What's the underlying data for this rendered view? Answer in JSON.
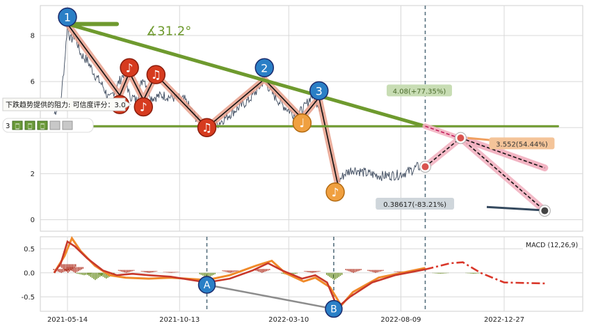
{
  "chart_data": [
    {
      "type": "line",
      "panel": "price",
      "yticks": [
        0,
        2,
        4,
        6,
        8
      ],
      "ylim": [
        -0.5,
        9.3
      ],
      "x_dates": [
        "2021-05-14",
        "2021-10-13",
        "2022-03-10",
        "2022-08-09",
        "2022-12-27"
      ],
      "price_series": [
        [
          "2021-04-26",
          4.6
        ],
        [
          "2021-05-05",
          5.2
        ],
        [
          "2021-05-10",
          6.8
        ],
        [
          "2021-05-14",
          8.5
        ],
        [
          "2021-05-18",
          7.8
        ],
        [
          "2021-05-24",
          8.0
        ],
        [
          "2021-06-01",
          7.2
        ],
        [
          "2021-06-10",
          6.9
        ],
        [
          "2021-06-20",
          6.3
        ],
        [
          "2021-07-01",
          5.8
        ],
        [
          "2021-07-10",
          5.2
        ],
        [
          "2021-07-20",
          5.8
        ],
        [
          "2021-07-30",
          6.4
        ],
        [
          "2021-08-06",
          5.4
        ],
        [
          "2021-08-15",
          5.2
        ],
        [
          "2021-08-25",
          6.2
        ],
        [
          "2021-09-05",
          5.3
        ],
        [
          "2021-09-20",
          5.4
        ],
        [
          "2021-10-05",
          5.3
        ],
        [
          "2021-10-20",
          5.2
        ],
        [
          "2021-11-05",
          4.4
        ],
        [
          "2021-11-19",
          3.9
        ],
        [
          "2021-12-05",
          4.2
        ],
        [
          "2021-12-25",
          4.7
        ],
        [
          "2022-01-15",
          5.2
        ],
        [
          "2022-01-28",
          5.7
        ],
        [
          "2022-02-05",
          6.1
        ],
        [
          "2022-02-15",
          5.5
        ],
        [
          "2022-03-01",
          5.0
        ],
        [
          "2022-03-20",
          4.5
        ],
        [
          "2022-04-01",
          4.9
        ],
        [
          "2022-04-10",
          5.4
        ],
        [
          "2022-04-20",
          5.0
        ],
        [
          "2022-04-28",
          4.3
        ],
        [
          "2022-05-08",
          2.7
        ],
        [
          "2022-05-15",
          1.6
        ],
        [
          "2022-05-25",
          2.0
        ],
        [
          "2022-06-05",
          2.2
        ],
        [
          "2022-06-25",
          2.0
        ],
        [
          "2022-07-15",
          1.9
        ],
        [
          "2022-08-05",
          1.95
        ],
        [
          "2022-08-20",
          2.1
        ],
        [
          "2022-09-01",
          2.3
        ],
        [
          "2022-09-11",
          2.3
        ]
      ],
      "trendlines": [
        {
          "style": "descending-resistance",
          "color": "#6e9a2e",
          "points": [
            [
              "2021-05-14",
              8.5
            ],
            [
              "2022-09-11",
              4.06
            ]
          ]
        },
        {
          "style": "horizontal-level",
          "color": "#6e9a2e",
          "points": [
            [
              "2021-05-14",
              4.06
            ],
            [
              "2023-03-10",
              4.06
            ]
          ]
        },
        {
          "style": "angle-marker",
          "color": "#6e9a2e",
          "points": [
            [
              "2021-05-14",
              8.5
            ],
            [
              "2021-07-20",
              8.5
            ]
          ]
        }
      ],
      "wave_path": [
        [
          "2021-05-14",
          8.5
        ],
        [
          "2021-07-24",
          5.4
        ],
        [
          "2021-08-06",
          6.4
        ],
        [
          "2021-08-25",
          5.2
        ],
        [
          "2021-09-11",
          6.3
        ],
        [
          "2021-11-19",
          4.0
        ],
        [
          "2022-02-05",
          6.1
        ],
        [
          "2022-03-28",
          4.4
        ],
        [
          "2022-04-20",
          5.3
        ],
        [
          "2022-05-15",
          1.6
        ]
      ],
      "markers": [
        {
          "label": "1",
          "kind": "blue",
          "x": "2021-05-14",
          "y": 8.8
        },
        {
          "label": "2",
          "kind": "blue",
          "x": "2022-02-05",
          "y": 6.6
        },
        {
          "label": "3",
          "kind": "blue",
          "x": "2022-04-20",
          "y": 5.6
        },
        {
          "label": "♩",
          "kind": "red",
          "x": "2021-07-24",
          "y": 5.0
        },
        {
          "label": "♪",
          "kind": "red",
          "x": "2021-08-06",
          "y": 6.6
        },
        {
          "label": "♪",
          "kind": "red",
          "x": "2021-08-25",
          "y": 4.9
        },
        {
          "label": "♫",
          "kind": "red",
          "x": "2021-09-11",
          "y": 6.3
        },
        {
          "label": "♫",
          "kind": "red",
          "x": "2021-11-19",
          "y": 4.0
        },
        {
          "label": "♩",
          "kind": "orange",
          "x": "2022-03-28",
          "y": 4.2
        },
        {
          "label": "♪",
          "kind": "orange",
          "x": "2022-05-12",
          "y": 1.2
        }
      ],
      "projections": [
        {
          "color": "#c2185b",
          "from": [
            "2022-09-11",
            2.3
          ],
          "to": [
            "2022-10-29",
            3.55
          ]
        },
        {
          "color": "#c2185b",
          "from": [
            "2022-10-29",
            3.55
          ],
          "to": [
            "2023-02-20",
            0.39
          ]
        },
        {
          "color": "#c2185b",
          "from": [
            "2022-09-11",
            4.06
          ],
          "to": [
            "2023-02-20",
            2.25
          ]
        },
        {
          "color": "#c2185b",
          "from": [
            "2022-10-29",
            3.55
          ],
          "to": [
            "2023-02-20",
            2.25
          ]
        }
      ],
      "callouts": [
        {
          "text": "4.08(+77.35%)",
          "x": "2022-09-03",
          "y": 5.6,
          "bg": "#c8ddb4",
          "fg": "#4a6a2a"
        },
        {
          "text": "3.552(54.44%)",
          "x": "2023-01-20",
          "y": 3.3,
          "bg": "#f4c499",
          "fg": "#333333"
        },
        {
          "text": "0.38617(-83.21%)",
          "x": "2022-08-28",
          "y": 0.68,
          "bg": "#cfd6db",
          "fg": "#222222"
        }
      ],
      "angle_label": "∡31.2°",
      "resistance_note": "下跌趋势提供的阻力: 可信度评分：3.0",
      "rating_value": "3",
      "rating_stars_filled": 3,
      "rating_stars_total": 5
    },
    {
      "type": "line",
      "panel": "macd",
      "legend": "MACD (12,26,9)",
      "yticks": [
        -0.5,
        0.0,
        0.5
      ],
      "ylim": [
        -0.8,
        0.75
      ],
      "macd_line": [
        [
          "2021-04-26",
          0.0
        ],
        [
          "2021-05-05",
          0.2
        ],
        [
          "2021-05-14",
          0.65
        ],
        [
          "2021-05-24",
          0.55
        ],
        [
          "2021-06-10",
          0.3
        ],
        [
          "2021-07-01",
          0.05
        ],
        [
          "2021-07-20",
          -0.05
        ],
        [
          "2021-08-10",
          -0.02
        ],
        [
          "2021-09-01",
          -0.05
        ],
        [
          "2021-10-01",
          -0.08
        ],
        [
          "2021-11-19",
          -0.2
        ],
        [
          "2021-12-20",
          -0.12
        ],
        [
          "2022-01-20",
          0.05
        ],
        [
          "2022-02-10",
          0.2
        ],
        [
          "2022-03-01",
          0.05
        ],
        [
          "2022-03-28",
          -0.12
        ],
        [
          "2022-04-15",
          -0.05
        ],
        [
          "2022-05-01",
          -0.2
        ],
        [
          "2022-05-15",
          -0.72
        ],
        [
          "2022-06-01",
          -0.5
        ],
        [
          "2022-07-01",
          -0.2
        ],
        [
          "2022-08-01",
          -0.05
        ],
        [
          "2022-09-11",
          0.07
        ],
        [
          "2022-10-15",
          0.2
        ],
        [
          "2022-11-01",
          0.22
        ],
        [
          "2022-11-25",
          0.0
        ],
        [
          "2022-12-27",
          -0.2
        ],
        [
          "2023-02-20",
          -0.22
        ]
      ],
      "signal_line": [
        [
          "2021-04-26",
          0.0
        ],
        [
          "2021-05-10",
          0.35
        ],
        [
          "2021-05-20",
          0.72
        ],
        [
          "2021-06-01",
          0.45
        ],
        [
          "2021-06-20",
          0.15
        ],
        [
          "2021-07-10",
          -0.05
        ],
        [
          "2021-08-01",
          -0.1
        ],
        [
          "2021-09-01",
          -0.12
        ],
        [
          "2021-10-01",
          -0.1
        ],
        [
          "2021-11-19",
          -0.15
        ],
        [
          "2021-12-20",
          -0.05
        ],
        [
          "2022-01-25",
          0.15
        ],
        [
          "2022-02-15",
          0.25
        ],
        [
          "2022-03-05",
          0.0
        ],
        [
          "2022-03-30",
          -0.18
        ],
        [
          "2022-04-15",
          -0.1
        ],
        [
          "2022-05-05",
          -0.3
        ],
        [
          "2022-05-20",
          -0.68
        ],
        [
          "2022-06-05",
          -0.4
        ],
        [
          "2022-07-10",
          -0.1
        ],
        [
          "2022-08-10",
          0.0
        ],
        [
          "2022-09-11",
          0.1
        ]
      ],
      "histogram": [
        [
          "2021-05-05",
          0.08
        ],
        [
          "2021-05-14",
          0.18
        ],
        [
          "2021-05-24",
          0.12
        ],
        [
          "2021-06-05",
          -0.05
        ],
        [
          "2021-06-20",
          -0.15
        ],
        [
          "2021-07-05",
          -0.12
        ],
        [
          "2021-08-01",
          0.06
        ],
        [
          "2021-09-01",
          0.04
        ],
        [
          "2021-10-01",
          0.02
        ],
        [
          "2021-11-19",
          -0.1
        ],
        [
          "2021-12-20",
          0.05
        ],
        [
          "2022-02-01",
          0.08
        ],
        [
          "2022-03-10",
          -0.05
        ],
        [
          "2022-04-10",
          0.04
        ],
        [
          "2022-05-10",
          -0.15
        ],
        [
          "2022-06-05",
          0.08
        ],
        [
          "2022-07-05",
          0.06
        ],
        [
          "2022-08-10",
          0.03
        ],
        [
          "2022-10-01",
          -0.02
        ],
        [
          "2022-11-15",
          -0.02
        ]
      ],
      "markers": [
        {
          "label": "A",
          "x": "2021-11-19",
          "y": -0.25
        },
        {
          "label": "B",
          "x": "2022-05-10",
          "y": -0.75
        }
      ],
      "divergence": {
        "from": [
          "2021-11-19",
          -0.25
        ],
        "to": [
          "2022-05-10",
          -0.75
        ]
      },
      "dashed_x": [
        "2021-11-19",
        "2022-05-10",
        "2022-09-11"
      ]
    }
  ]
}
